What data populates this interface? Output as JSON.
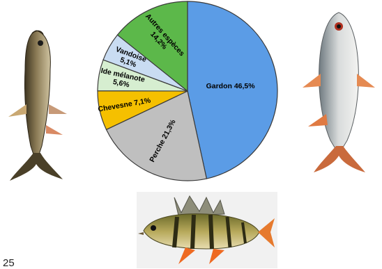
{
  "chart_data": {
    "type": "pie",
    "title": "",
    "slices": [
      {
        "label": "Gardon 46,5%",
        "value": 46.5,
        "color": "#5b9ce6"
      },
      {
        "label": "Perche 21,3%",
        "value": 21.3,
        "color": "#bfbfbf"
      },
      {
        "label": "Chevesne 7,1%",
        "value": 7.1,
        "color": "#f5c000"
      },
      {
        "label": "Ide mélanote 5,6%",
        "value": 5.6,
        "color": "#d6eed0"
      },
      {
        "label": "Vandoise 5,1%",
        "value": 5.1,
        "color": "#c9dcf2"
      },
      {
        "label": "Autres espèces 14,2%",
        "value": 14.2,
        "color": "#5cb84a"
      }
    ],
    "legend": "none"
  },
  "images": {
    "left_fish": "chub-fish",
    "right_fish": "roach-fish",
    "bottom_fish": "perch-fish"
  },
  "page_number": "25"
}
